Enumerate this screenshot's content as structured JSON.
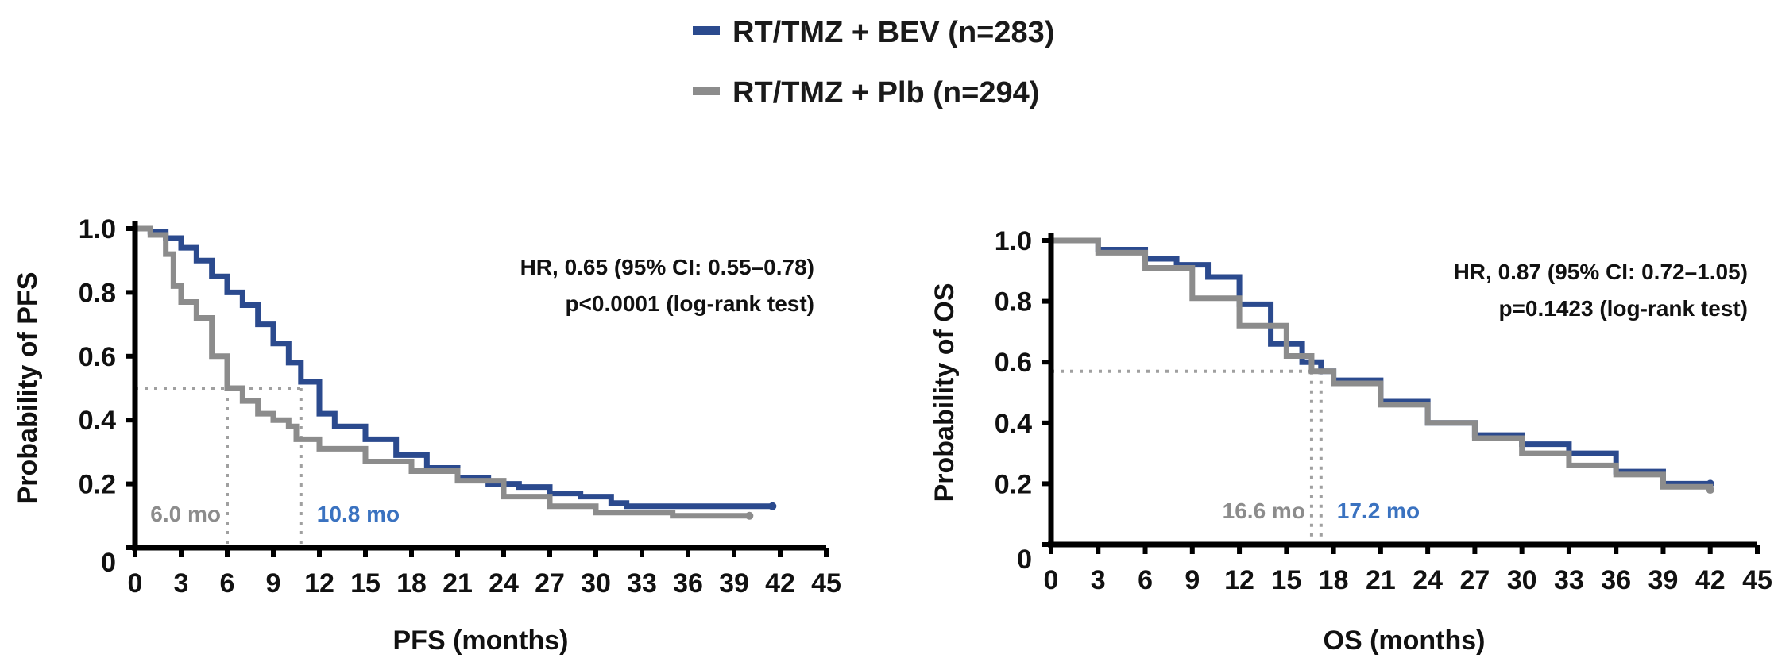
{
  "legend": [
    {
      "label": "RT/TMZ + BEV (n=283)",
      "color": "#2b4a8e"
    },
    {
      "label": "RT/TMZ + Plb (n=294)",
      "color": "#8c8c8c"
    }
  ],
  "colors": {
    "bev": "#2b4a8e",
    "plb": "#8c8c8c",
    "axis": "#000000",
    "median_label_bev": "#3a72c0",
    "median_label_plb": "#8c8c8c",
    "guide": "#a0a0a0"
  },
  "chart_data": [
    {
      "type": "line",
      "subtype": "kaplan-meier",
      "xlabel": "PFS (months)",
      "ylabel": "Probability of PFS",
      "xlim": [
        0,
        45
      ],
      "ylim": [
        0,
        1.0
      ],
      "x_ticks": [
        "0",
        "3",
        "6",
        "9",
        "12",
        "15",
        "18",
        "21",
        "24",
        "27",
        "30",
        "33",
        "36",
        "39",
        "42",
        "45"
      ],
      "y_ticks": [
        "0",
        "0.2",
        "0.4",
        "0.6",
        "0.8",
        "1.0"
      ],
      "annotation": [
        "HR, 0.65 (95% CI: 0.55–0.78)",
        "p<0.0001 (log-rank test)"
      ],
      "median_level": 0.5,
      "medians": [
        {
          "series": "RT/TMZ + Plb (n=294)",
          "x": 6.0,
          "label": "6.0 mo"
        },
        {
          "series": "RT/TMZ + BEV (n=283)",
          "x": 10.8,
          "label": "10.8 mo"
        }
      ],
      "series": [
        {
          "name": "RT/TMZ + BEV (n=283)",
          "x": [
            0,
            1,
            2,
            3,
            4,
            5,
            6,
            7,
            8,
            9,
            10,
            10.8,
            12,
            13,
            15,
            17,
            19,
            21,
            23,
            25,
            27,
            29,
            31,
            32,
            33,
            35,
            37,
            39,
            41.5
          ],
          "y": [
            1.0,
            0.99,
            0.97,
            0.94,
            0.9,
            0.85,
            0.8,
            0.76,
            0.7,
            0.64,
            0.58,
            0.52,
            0.42,
            0.38,
            0.34,
            0.29,
            0.25,
            0.22,
            0.2,
            0.19,
            0.17,
            0.16,
            0.14,
            0.13,
            0.13,
            0.13,
            0.13,
            0.13,
            0.13
          ]
        },
        {
          "name": "RT/TMZ + Plb (n=294)",
          "x": [
            0,
            1,
            2,
            2.5,
            3,
            4,
            5,
            6,
            7,
            8,
            9,
            10,
            10.5,
            12,
            15,
            18,
            21,
            24,
            27,
            30,
            32,
            35,
            40
          ],
          "y": [
            1.0,
            0.98,
            0.92,
            0.82,
            0.77,
            0.72,
            0.6,
            0.5,
            0.46,
            0.42,
            0.4,
            0.38,
            0.34,
            0.31,
            0.27,
            0.24,
            0.21,
            0.16,
            0.13,
            0.11,
            0.11,
            0.1,
            0.1
          ]
        }
      ]
    },
    {
      "type": "line",
      "subtype": "kaplan-meier",
      "xlabel": "OS (months)",
      "ylabel": "Probability of OS",
      "xlim": [
        0,
        45
      ],
      "ylim": [
        0,
        1.0
      ],
      "x_ticks": [
        "0",
        "3",
        "6",
        "9",
        "12",
        "15",
        "18",
        "21",
        "24",
        "27",
        "30",
        "33",
        "36",
        "39",
        "42",
        "45"
      ],
      "y_ticks": [
        "0",
        "0.2",
        "0.4",
        "0.6",
        "0.8",
        "1.0"
      ],
      "annotation": [
        "HR, 0.87 (95% CI: 0.72–1.05)",
        "p=0.1423 (log-rank test)"
      ],
      "median_level": 0.57,
      "medians": [
        {
          "series": "RT/TMZ + Plb (n=294)",
          "x": 16.6,
          "label": "16.6 mo"
        },
        {
          "series": "RT/TMZ + BEV (n=283)",
          "x": 17.2,
          "label": "17.2 mo"
        }
      ],
      "series": [
        {
          "name": "RT/TMZ + BEV (n=283)",
          "x": [
            0,
            3,
            6,
            8,
            10,
            12,
            14,
            16,
            17.2,
            18,
            21,
            24,
            27,
            30,
            33,
            36,
            39,
            42
          ],
          "y": [
            1.0,
            0.97,
            0.94,
            0.92,
            0.88,
            0.79,
            0.66,
            0.6,
            0.57,
            0.54,
            0.47,
            0.4,
            0.36,
            0.33,
            0.3,
            0.24,
            0.2,
            0.2
          ]
        },
        {
          "name": "RT/TMZ + Plb (n=294)",
          "x": [
            0,
            3,
            6,
            9,
            12,
            15,
            16.6,
            18,
            21,
            24,
            27,
            30,
            33,
            36,
            39,
            42
          ],
          "y": [
            1.0,
            0.96,
            0.91,
            0.81,
            0.72,
            0.62,
            0.57,
            0.53,
            0.46,
            0.4,
            0.35,
            0.3,
            0.26,
            0.23,
            0.19,
            0.18
          ]
        }
      ]
    }
  ]
}
